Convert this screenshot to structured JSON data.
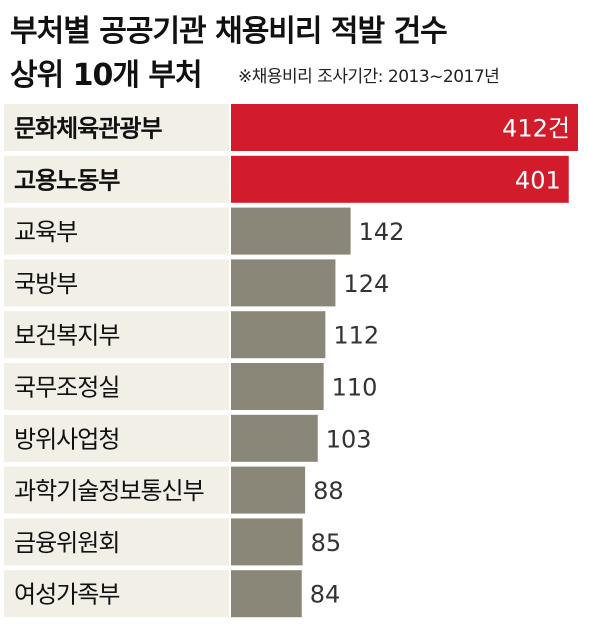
{
  "header": {
    "title_line1": "부처별 공공기관 채용비리 적발 건수",
    "title_line2": "상위 10개 부처",
    "note": "※채용비리 조사기간: 2013~2017년"
  },
  "chart_data": {
    "type": "bar",
    "orientation": "horizontal",
    "title": "부처별 공공기관 채용비리 적발 건수 상위 10개 부처",
    "unit": "건",
    "categories": [
      "문화체육관광부",
      "고용노동부",
      "교육부",
      "국방부",
      "보건복지부",
      "국무조정실",
      "방위사업청",
      "과학기술정보통신부",
      "금융위원회",
      "여성가족부"
    ],
    "values": [
      412,
      401,
      142,
      124,
      112,
      110,
      103,
      88,
      85,
      84
    ],
    "value_labels": [
      "412건",
      "401",
      "142",
      "124",
      "112",
      "110",
      "103",
      "88",
      "85",
      "84"
    ],
    "highlight": [
      true,
      true,
      false,
      false,
      false,
      false,
      false,
      false,
      false,
      false
    ],
    "colors": {
      "highlight": "#d21c2c",
      "normal": "#8a8678",
      "row_background": "#f1efe6"
    },
    "xlim": [
      0,
      412
    ]
  }
}
